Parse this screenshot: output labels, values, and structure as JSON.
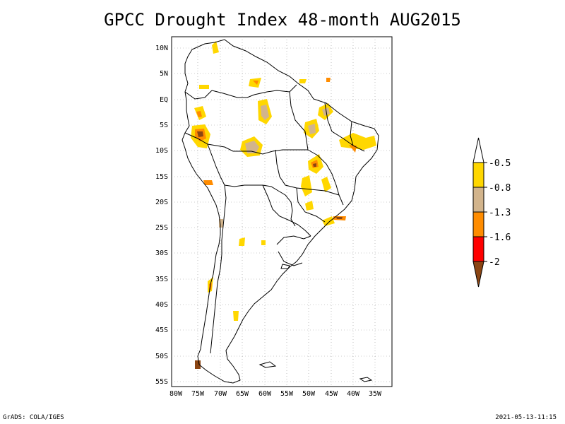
{
  "title": "GPCC Drought Index 48-month AUG2015",
  "lat_labels": [
    "10N",
    "5N",
    "EQ",
    "5S",
    "10S",
    "15S",
    "20S",
    "25S",
    "30S",
    "35S",
    "40S",
    "45S",
    "50S",
    "55S"
  ],
  "lon_labels": [
    "80W",
    "75W",
    "70W",
    "65W",
    "60W",
    "55W",
    "50W",
    "45W",
    "40W",
    "35W"
  ],
  "legend": {
    "labels": [
      "-0.5",
      "-0.8",
      "-1.3",
      "-1.6",
      "-2"
    ],
    "colors": {
      "arrow_top": "#ffffff",
      "band1": "#ffd700",
      "band2": "#d2b48c",
      "band3": "#ff8c00",
      "band4": "#ff0000",
      "arrow_bottom": "#8b4513"
    }
  },
  "footer": {
    "left": "GrADS: COLA/IGES",
    "right": "2021-05-13-11:15"
  }
}
